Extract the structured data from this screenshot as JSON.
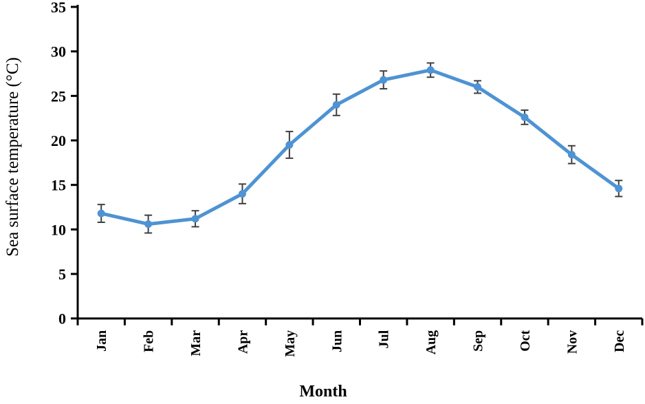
{
  "chart_data": {
    "type": "line",
    "title": "",
    "xlabel": "Month",
    "ylabel": "Sea surface temperature (°C)",
    "categories": [
      "Jan",
      "Feb",
      "Mar",
      "Apr",
      "May",
      "Jun",
      "Jul",
      "Aug",
      "Sep",
      "Oct",
      "Nov",
      "Dec"
    ],
    "series": [
      {
        "name": "Sea surface temperature",
        "values": [
          11.8,
          10.6,
          11.2,
          14.0,
          19.5,
          24.0,
          26.8,
          27.9,
          26.0,
          22.6,
          18.4,
          14.6
        ],
        "errors": [
          1.0,
          1.0,
          0.9,
          1.1,
          1.5,
          1.2,
          1.0,
          0.8,
          0.7,
          0.8,
          1.0,
          0.9
        ],
        "marker": "circle",
        "line_color": "#4E93D3",
        "error_color": "#3F3F3F"
      }
    ],
    "ylim": [
      0,
      35
    ],
    "ytick_step": 5,
    "yticks": [
      0,
      5,
      10,
      15,
      20,
      25,
      30,
      35
    ],
    "grid": false,
    "legend": "none",
    "axis_color": "#000000",
    "background_color": "#FFFFFF"
  }
}
